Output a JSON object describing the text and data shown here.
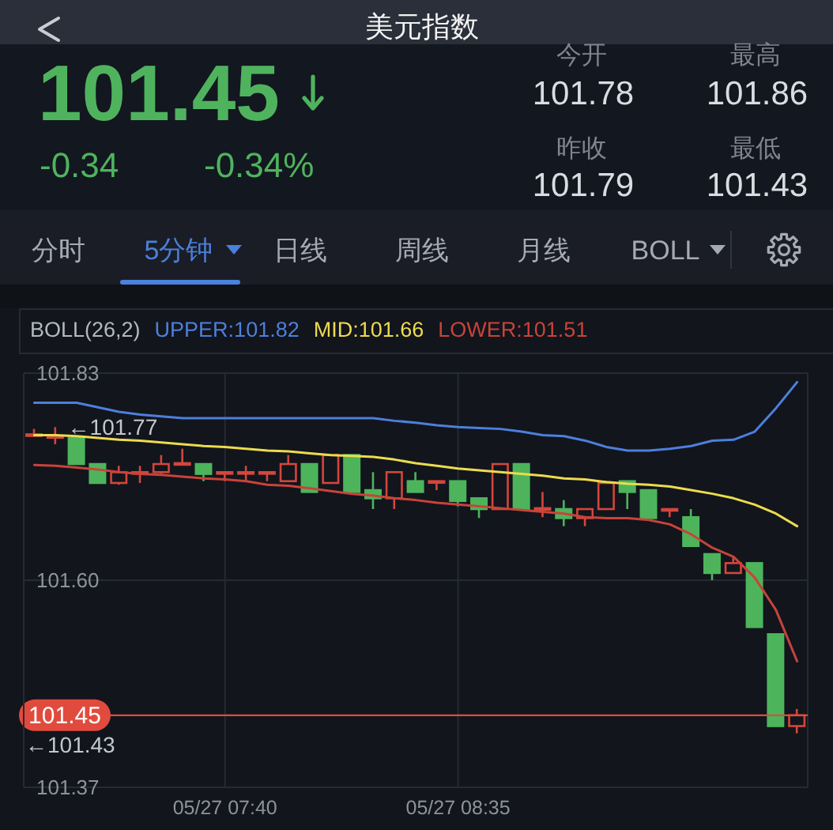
{
  "chart_data": [
    {
      "type": "other",
      "title": "美元指数",
      "annotations": [
        "101.45",
        "-0.34",
        "-0.34%",
        "今开",
        "101.78",
        "最高",
        "101.86",
        "昨收",
        "101.79",
        "最低",
        "101.43",
        "分时",
        "5分钟",
        "日线",
        "周线",
        "月线",
        "BOLL"
      ]
    },
    {
      "type": "candlestick",
      "legend_title": "BOLL(26,2)",
      "legend": "top left",
      "categories": [
        null,
        null,
        null,
        null,
        null,
        null,
        null,
        null,
        null,
        "05/27 07:40",
        null,
        null,
        null,
        null,
        null,
        null,
        null,
        null,
        null,
        null,
        "05/27 08:35",
        null,
        null,
        null,
        null,
        null,
        null,
        null,
        null,
        null,
        null,
        null,
        null,
        null,
        null,
        null,
        null
      ],
      "ohlc": [
        [
          101.761,
          101.768,
          101.76,
          101.762
        ],
        [
          101.759,
          101.77,
          101.751,
          101.76
        ],
        [
          101.758,
          101.758,
          101.729,
          101.729
        ],
        [
          101.729,
          101.729,
          101.708,
          101.708
        ],
        [
          101.708,
          101.727,
          101.706,
          101.72
        ],
        [
          101.719,
          101.727,
          101.708,
          101.72
        ],
        [
          101.72,
          101.739,
          101.718,
          101.729
        ],
        [
          101.729,
          101.746,
          101.729,
          101.73
        ],
        [
          101.729,
          101.729,
          101.71,
          101.718
        ],
        [
          101.719,
          101.72,
          101.71,
          101.72
        ],
        [
          101.719,
          101.727,
          101.71,
          101.72
        ],
        [
          101.719,
          101.72,
          101.71,
          101.72
        ],
        [
          101.71,
          101.739,
          101.71,
          101.729
        ],
        [
          101.729,
          101.729,
          101.698,
          101.698
        ],
        [
          101.708,
          101.739,
          101.708,
          101.739
        ],
        [
          101.739,
          101.739,
          101.698,
          101.698
        ],
        [
          101.7,
          101.72,
          101.679,
          101.691
        ],
        [
          101.691,
          101.72,
          101.679,
          101.72
        ],
        [
          101.71,
          101.72,
          101.698,
          101.698
        ],
        [
          101.709,
          101.71,
          101.7,
          101.71
        ],
        [
          101.71,
          101.71,
          101.682,
          101.688
        ],
        [
          101.691,
          101.691,
          101.669,
          101.679
        ],
        [
          101.679,
          101.729,
          101.679,
          101.729
        ],
        [
          101.729,
          101.729,
          101.679,
          101.679
        ],
        [
          101.679,
          101.698,
          101.67,
          101.68
        ],
        [
          101.679,
          101.689,
          101.66,
          101.669
        ],
        [
          101.669,
          101.679,
          101.66,
          101.679
        ],
        [
          101.679,
          101.708,
          101.679,
          101.708
        ],
        [
          101.71,
          101.71,
          101.679,
          101.698
        ],
        [
          101.7,
          101.7,
          101.669,
          101.669
        ],
        [
          101.678,
          101.679,
          101.67,
          101.679
        ],
        [
          101.67,
          101.679,
          101.638,
          101.638
        ],
        [
          101.629,
          101.629,
          101.6,
          101.608
        ],
        [
          101.608,
          101.627,
          101.608,
          101.619
        ],
        [
          101.619,
          101.619,
          101.548,
          101.548
        ],
        [
          101.54,
          101.54,
          101.438,
          101.438
        ],
        [
          101.438,
          101.457,
          101.43,
          101.45
        ]
      ],
      "colors": [
        "#d4463c",
        "#d4463c",
        "#4db45c",
        "#4db45c",
        "#d4463c",
        "#d4463c",
        "#d4463c",
        "#d4463c",
        "#4db45c",
        "#d4463c",
        "#d4463c",
        "#d4463c",
        "#d4463c",
        "#4db45c",
        "#d4463c",
        "#4db45c",
        "#4db45c",
        "#d4463c",
        "#4db45c",
        "#d4463c",
        "#4db45c",
        "#4db45c",
        "#d4463c",
        "#4db45c",
        "#d4463c",
        "#4db45c",
        "#d4463c",
        "#d4463c",
        "#4db45c",
        "#4db45c",
        "#d4463c",
        "#4db45c",
        "#4db45c",
        "#d4463c",
        "#4db45c",
        "#4db45c",
        "#d4463c"
      ],
      "series": [
        {
          "name": "UPPER:101.82",
          "type": "line",
          "color": "#4d7fdc",
          "values": [
            101.797,
            101.797,
            101.797,
            101.792,
            101.787,
            101.784,
            101.782,
            101.78,
            101.78,
            101.78,
            101.78,
            101.78,
            101.78,
            101.78,
            101.78,
            101.78,
            101.78,
            101.777,
            101.775,
            101.772,
            101.77,
            101.769,
            101.768,
            101.765,
            101.761,
            101.76,
            101.755,
            101.748,
            101.744,
            101.744,
            101.746,
            101.749,
            101.755,
            101.756,
            101.765,
            101.791,
            101.82
          ]
        },
        {
          "name": "MID:101.66",
          "type": "line",
          "color": "#ecdb4e",
          "values": [
            101.761,
            101.761,
            101.76,
            101.758,
            101.756,
            101.755,
            101.753,
            101.751,
            101.749,
            101.748,
            101.746,
            101.744,
            101.743,
            101.741,
            101.739,
            101.738,
            101.737,
            101.734,
            101.73,
            101.727,
            101.724,
            101.722,
            101.72,
            101.718,
            101.716,
            101.713,
            101.712,
            101.709,
            101.707,
            101.706,
            101.704,
            101.7,
            101.696,
            101.691,
            101.684,
            101.674,
            101.66
          ]
        },
        {
          "name": "LOWER:101.51",
          "type": "line",
          "color": "#c8433a",
          "values": [
            101.728,
            101.727,
            101.725,
            101.723,
            101.72,
            101.718,
            101.717,
            101.715,
            101.713,
            101.712,
            101.71,
            101.706,
            101.705,
            101.702,
            101.699,
            101.696,
            101.694,
            101.691,
            101.689,
            101.686,
            101.684,
            101.682,
            101.68,
            101.678,
            101.676,
            101.674,
            101.67,
            101.669,
            101.669,
            101.667,
            101.662,
            101.651,
            101.636,
            101.626,
            101.603,
            101.567,
            101.51
          ]
        }
      ],
      "ylim": [
        101.37,
        101.83
      ],
      "yticks": [
        101.37,
        {
          "value": 101.6,
          "label": "101.60"
        },
        101.83
      ],
      "grid": true,
      "ref_lines": [
        {
          "axis": "y",
          "value": 101.45,
          "label": "101.45",
          "color": "#e04b3e"
        }
      ],
      "annotations": [
        "←101.77",
        "←101.43"
      ]
    }
  ]
}
